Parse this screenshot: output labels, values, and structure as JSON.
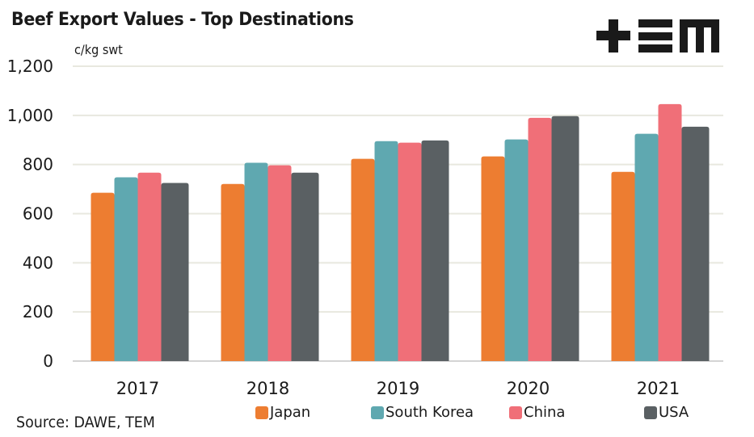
{
  "chart_data": {
    "type": "bar",
    "title": "Beef Export Values - Top Destinations",
    "ylabel": "c/kg swt",
    "xlabel": "",
    "categories": [
      "2017",
      "2018",
      "2019",
      "2020",
      "2021"
    ],
    "series": [
      {
        "name": "Japan",
        "color": "#ED7D31",
        "values": [
          685,
          721,
          823,
          833,
          770
        ]
      },
      {
        "name": "South Korea",
        "color": "#5FA8B0",
        "values": [
          748,
          807,
          895,
          902,
          925
        ]
      },
      {
        "name": "China",
        "color": "#F06F78",
        "values": [
          767,
          797,
          889,
          990,
          1046
        ]
      },
      {
        "name": "USA",
        "color": "#5A6063",
        "values": [
          725,
          767,
          898,
          997,
          954
        ]
      }
    ],
    "ylim": [
      0,
      1200
    ],
    "yticks": [
      0,
      200,
      400,
      600,
      800,
      1000,
      1200
    ],
    "ytick_labels": [
      "0",
      "200",
      "400",
      "600",
      "800",
      "1,000",
      "1,200"
    ],
    "grid": true,
    "legend_position": "bottom"
  },
  "source": "Source: DAWE, TEM",
  "logo": {
    "name": "TEM logo",
    "color": "#1a1a1a"
  },
  "colors": {
    "grid": "#E8E8DF",
    "axis": "#D4D4D4"
  }
}
